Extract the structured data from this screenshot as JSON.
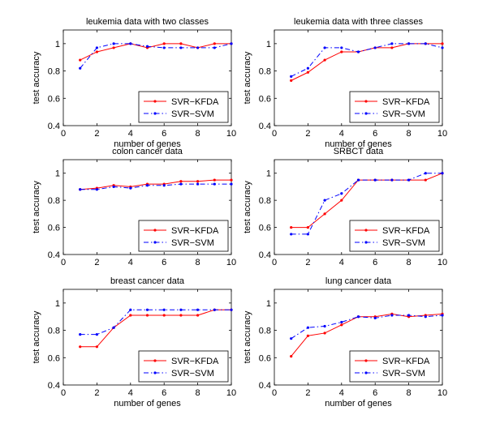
{
  "figure": {
    "description_free": true
  },
  "chart_data": [
    {
      "type": "line",
      "title": "leukemia data with two classes",
      "xlabel": "number of genes",
      "ylabel": "test accuracy",
      "xlim": [
        0,
        10
      ],
      "ylim": [
        0.4,
        1.1
      ],
      "xticks": [
        0,
        2,
        4,
        6,
        8,
        10
      ],
      "yticks": [
        0.4,
        0.6,
        0.8,
        1
      ],
      "legend_position": "bottom-right",
      "x": [
        1,
        2,
        3,
        4,
        5,
        6,
        7,
        8,
        9,
        10
      ],
      "series": [
        {
          "name": "SVR−KFDA",
          "values": [
            0.88,
            0.94,
            0.97,
            1.0,
            0.97,
            1.0,
            1.0,
            0.97,
            1.0,
            1.0
          ]
        },
        {
          "name": "SVR−SVM",
          "values": [
            0.82,
            0.97,
            1.0,
            1.0,
            0.98,
            0.97,
            0.97,
            0.97,
            0.97,
            1.0
          ]
        }
      ]
    },
    {
      "type": "line",
      "title": "leukemia data with three classes",
      "xlabel": "number of genes",
      "ylabel": "test accuracy",
      "xlim": [
        0,
        10
      ],
      "ylim": [
        0.4,
        1.1
      ],
      "xticks": [
        0,
        2,
        4,
        6,
        8,
        10
      ],
      "yticks": [
        0.4,
        0.6,
        0.8,
        1
      ],
      "legend_position": "bottom-right",
      "x": [
        1,
        2,
        3,
        4,
        5,
        6,
        7,
        8,
        9,
        10
      ],
      "series": [
        {
          "name": "SVR−KFDA",
          "values": [
            0.73,
            0.79,
            0.88,
            0.94,
            0.94,
            0.97,
            0.97,
            1.0,
            1.0,
            1.0
          ]
        },
        {
          "name": "SVR−SVM",
          "values": [
            0.76,
            0.82,
            0.97,
            0.97,
            0.94,
            0.97,
            1.0,
            1.0,
            1.0,
            0.97
          ]
        }
      ]
    },
    {
      "type": "line",
      "title": "colon cancer data",
      "xlabel": "",
      "ylabel": "test accuracy",
      "xlim": [
        0,
        10
      ],
      "ylim": [
        0.4,
        1.1
      ],
      "xticks": [
        0,
        2,
        4,
        6,
        8,
        10
      ],
      "yticks": [
        0.4,
        0.6,
        0.8,
        1
      ],
      "legend_position": "bottom-right",
      "x": [
        1,
        2,
        3,
        4,
        5,
        6,
        7,
        8,
        9,
        10
      ],
      "series": [
        {
          "name": "SVR−KFDA",
          "values": [
            0.88,
            0.89,
            0.91,
            0.9,
            0.92,
            0.92,
            0.94,
            0.94,
            0.95,
            0.95
          ]
        },
        {
          "name": "SVR−SVM",
          "values": [
            0.88,
            0.88,
            0.9,
            0.89,
            0.91,
            0.91,
            0.92,
            0.92,
            0.92,
            0.92
          ]
        }
      ]
    },
    {
      "type": "line",
      "title": "SRBCT data",
      "xlabel": "",
      "ylabel": "test accuracy",
      "xlim": [
        0,
        10
      ],
      "ylim": [
        0.4,
        1.1
      ],
      "xticks": [
        0,
        2,
        4,
        6,
        8,
        10
      ],
      "yticks": [
        0.4,
        0.6,
        0.8,
        1
      ],
      "legend_position": "bottom-right",
      "x": [
        1,
        2,
        3,
        4,
        5,
        6,
        7,
        8,
        9,
        10
      ],
      "series": [
        {
          "name": "SVR−KFDA",
          "values": [
            0.6,
            0.6,
            0.7,
            0.8,
            0.95,
            0.95,
            0.95,
            0.95,
            0.95,
            1.0
          ]
        },
        {
          "name": "SVR−SVM",
          "values": [
            0.55,
            0.55,
            0.8,
            0.85,
            0.95,
            0.95,
            0.95,
            0.95,
            1.0,
            1.0
          ]
        }
      ]
    },
    {
      "type": "line",
      "title": "breast cancer data",
      "xlabel": "number of genes",
      "ylabel": "test accuracy",
      "xlim": [
        0,
        10
      ],
      "ylim": [
        0.4,
        1.1
      ],
      "xticks": [
        0,
        2,
        4,
        6,
        8,
        10
      ],
      "yticks": [
        0.4,
        0.6,
        0.8,
        1
      ],
      "legend_position": "bottom-right",
      "x": [
        1,
        2,
        3,
        4,
        5,
        6,
        7,
        8,
        9,
        10
      ],
      "series": [
        {
          "name": "SVR−KFDA",
          "values": [
            0.68,
            0.68,
            0.82,
            0.91,
            0.91,
            0.91,
            0.91,
            0.91,
            0.95,
            0.95
          ]
        },
        {
          "name": "SVR−SVM",
          "values": [
            0.77,
            0.77,
            0.82,
            0.95,
            0.95,
            0.95,
            0.95,
            0.95,
            0.95,
            0.95
          ]
        }
      ]
    },
    {
      "type": "line",
      "title": "lung cancer data",
      "xlabel": "number of genes",
      "ylabel": "test accuracy",
      "xlim": [
        0,
        10
      ],
      "ylim": [
        0.4,
        1.1
      ],
      "xticks": [
        0,
        2,
        4,
        6,
        8,
        10
      ],
      "yticks": [
        0.4,
        0.6,
        0.8,
        1
      ],
      "legend_position": "bottom-right",
      "x": [
        1,
        2,
        3,
        4,
        5,
        6,
        7,
        8,
        9,
        10
      ],
      "series": [
        {
          "name": "SVR−KFDA",
          "values": [
            0.61,
            0.76,
            0.78,
            0.84,
            0.9,
            0.9,
            0.92,
            0.9,
            0.91,
            0.92
          ]
        },
        {
          "name": "SVR−SVM",
          "values": [
            0.74,
            0.82,
            0.83,
            0.86,
            0.9,
            0.89,
            0.91,
            0.91,
            0.9,
            0.91
          ]
        }
      ]
    }
  ],
  "style": {
    "kfda_color": "#ff0000",
    "svm_color": "#0000ff",
    "axis_color": "#000000",
    "background": "#ffffff"
  }
}
